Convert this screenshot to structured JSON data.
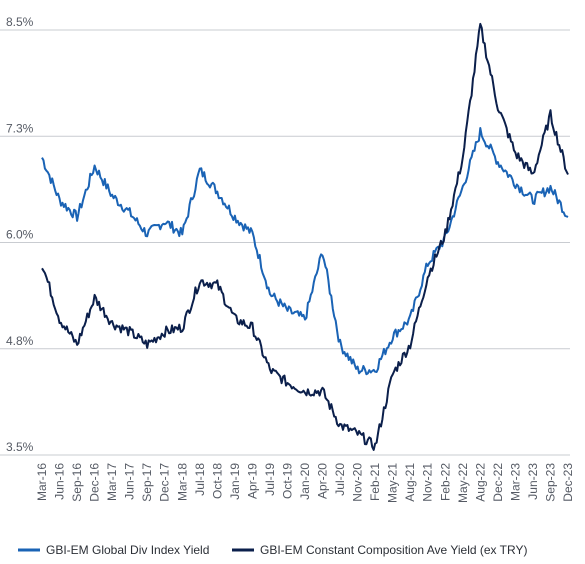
{
  "chart_data": {
    "type": "line",
    "title": "",
    "xlabel": "",
    "ylabel": "",
    "ylim": [
      3.5,
      8.5
    ],
    "y_ticks": [
      "8.5%",
      "7.3%",
      "6.0%",
      "4.8%",
      "3.5%"
    ],
    "y_tick_values": [
      8.5,
      7.25,
      6.0,
      4.75,
      3.5
    ],
    "x_ticks": [
      "Mar-16",
      "Jun-16",
      "Sep-16",
      "Dec-16",
      "Mar-17",
      "Jun-17",
      "Sep-17",
      "Dec-17",
      "Mar-18",
      "Jul-18",
      "Oct-18",
      "Jan-19",
      "Apr-19",
      "Jul-19",
      "Oct-19",
      "Jan-20",
      "Apr-20",
      "Jul-20",
      "Nov-20",
      "Feb-21",
      "May-21",
      "Aug-21",
      "Nov-21",
      "Feb-22",
      "May-22",
      "Aug-22",
      "Dec-22",
      "Mar-23",
      "Jun-23",
      "Sep-23",
      "Dec-23"
    ],
    "grid": "horizontal",
    "legend_position": "bottom",
    "x": [
      "Mar-16",
      "Jun-16",
      "Sep-16",
      "Dec-16",
      "Mar-17",
      "Jun-17",
      "Sep-17",
      "Dec-17",
      "Mar-18",
      "Jul-18",
      "Oct-18",
      "Jan-19",
      "Apr-19",
      "Jul-19",
      "Oct-19",
      "Jan-20",
      "Apr-20",
      "Jul-20",
      "Nov-20",
      "Feb-21",
      "May-21",
      "Aug-21",
      "Nov-21",
      "Feb-22",
      "May-22",
      "Aug-22",
      "Dec-22",
      "Mar-23",
      "Jun-23",
      "Sep-23",
      "Dec-23"
    ],
    "series": [
      {
        "name": "GBI-EM Global Div Index Yield",
        "color": "#1a63b5",
        "values": [
          7.0,
          6.5,
          6.3,
          6.9,
          6.55,
          6.35,
          6.1,
          6.25,
          6.1,
          6.85,
          6.6,
          6.3,
          6.1,
          5.4,
          5.2,
          5.1,
          5.9,
          4.8,
          4.5,
          4.5,
          4.9,
          5.1,
          5.75,
          6.05,
          6.65,
          7.3,
          6.95,
          6.7,
          6.5,
          6.65,
          6.3
        ]
      },
      {
        "name": "GBI-EM Constant Composition Ave Yield (ex TRY)",
        "color": "#0b1f4b",
        "values": [
          5.75,
          5.1,
          4.8,
          5.35,
          5.05,
          4.95,
          4.8,
          4.95,
          5.0,
          5.55,
          5.5,
          5.1,
          5.0,
          4.5,
          4.35,
          4.25,
          4.25,
          3.85,
          3.75,
          3.6,
          4.45,
          4.8,
          5.6,
          6.1,
          7.0,
          8.55,
          7.6,
          7.05,
          6.8,
          7.5,
          6.8
        ]
      }
    ]
  }
}
